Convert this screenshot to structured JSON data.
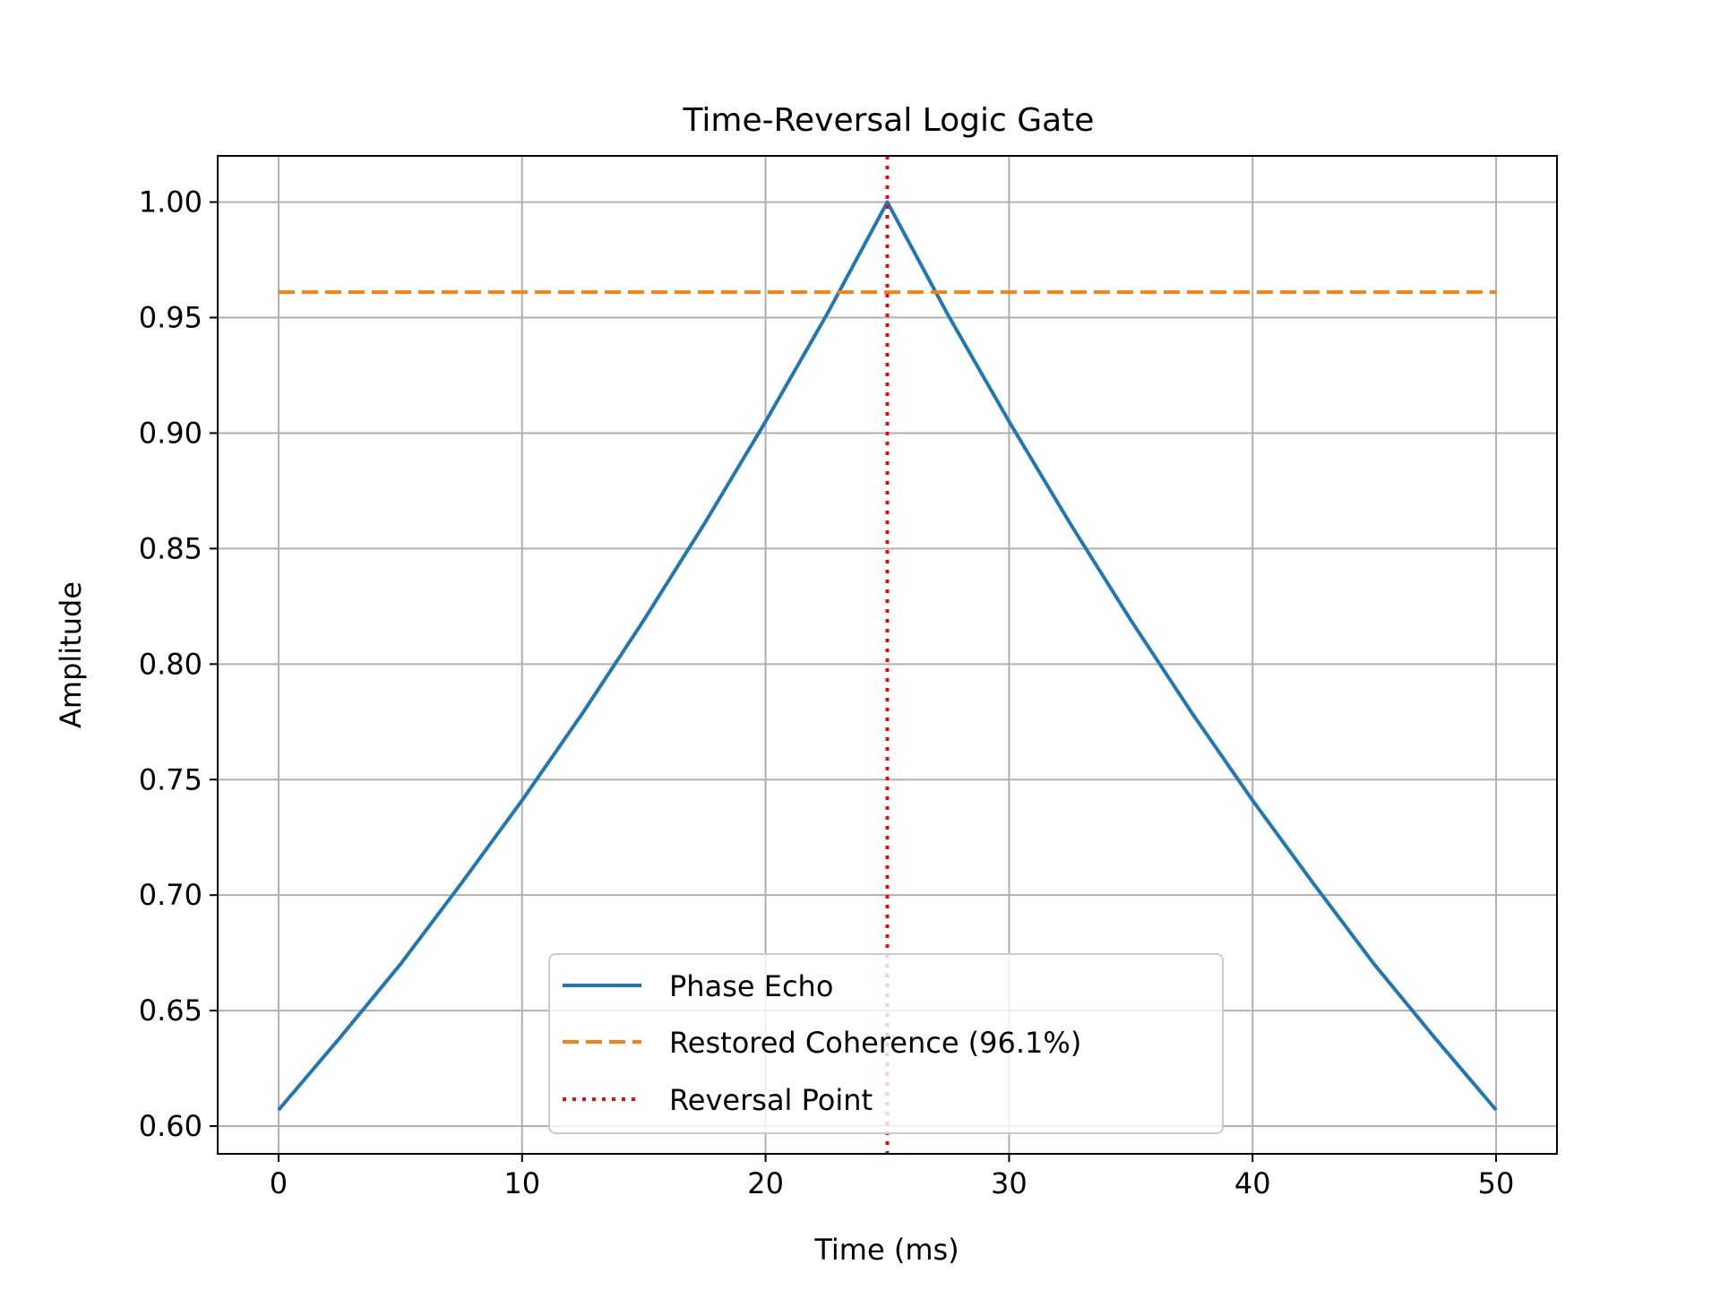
{
  "chart_data": {
    "type": "line",
    "title": "Time-Reversal Logic Gate",
    "xlabel": "Time (ms)",
    "ylabel": "Amplitude",
    "xlim": [
      -2.5,
      52.5
    ],
    "ylim": [
      0.588,
      1.02
    ],
    "xticks": [
      0,
      10,
      20,
      30,
      40,
      50
    ],
    "xtick_labels": [
      "0",
      "10",
      "20",
      "30",
      "40",
      "50"
    ],
    "yticks": [
      0.6,
      0.65,
      0.7,
      0.75,
      0.8,
      0.85,
      0.9,
      0.95,
      1.0
    ],
    "ytick_labels": [
      "0.60",
      "0.65",
      "0.70",
      "0.75",
      "0.80",
      "0.85",
      "0.90",
      "0.95",
      "1.00"
    ],
    "grid": true,
    "legend_position": "lower center",
    "series": [
      {
        "name": "Phase Echo",
        "style": "solid",
        "color": "#1f77b4",
        "x": [
          0,
          2.5,
          5,
          7.5,
          10,
          12.5,
          15,
          17.5,
          20,
          22.5,
          25,
          27.5,
          30,
          32.5,
          35,
          37.5,
          40,
          42.5,
          45,
          47.5,
          50
        ],
        "y": [
          0.607,
          0.638,
          0.67,
          0.705,
          0.741,
          0.779,
          0.819,
          0.861,
          0.905,
          0.951,
          1.0,
          0.951,
          0.905,
          0.861,
          0.819,
          0.779,
          0.741,
          0.705,
          0.67,
          0.638,
          0.607
        ]
      },
      {
        "name": "Restored Coherence (96.1%)",
        "style": "dashed",
        "color": "#ff7f0e",
        "x": [
          0,
          50
        ],
        "y": [
          0.961,
          0.961
        ]
      },
      {
        "name": "Reversal Point",
        "style": "dotted",
        "color": "#ff0000",
        "orientation": "vertical",
        "x": [
          25,
          25
        ]
      }
    ]
  }
}
